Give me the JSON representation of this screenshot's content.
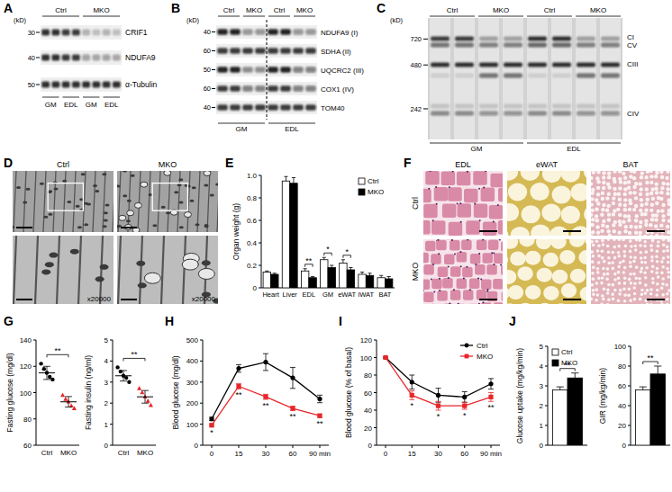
{
  "panel_labels": [
    "A",
    "B",
    "C",
    "D",
    "E",
    "F",
    "G",
    "H",
    "I",
    "J"
  ],
  "blot_a": {
    "unit": "(kD)",
    "header": [
      "Ctrl",
      "MKO"
    ],
    "lanes": [
      "GM",
      "EDL",
      "GM",
      "EDL"
    ],
    "rows": [
      {
        "label": "CRIF1",
        "marker": 30
      },
      {
        "label": "NDUFA9",
        "marker": 40
      },
      {
        "label": "α-Tubulin",
        "marker": 50
      }
    ]
  },
  "blot_b": {
    "unit": "(kD)",
    "header": [
      "Ctrl",
      "MKO",
      "Ctrl",
      "MKO"
    ],
    "groups": [
      "GM",
      "EDL"
    ],
    "rows": [
      {
        "label": "NDUFA9 (I)",
        "marker": 40
      },
      {
        "label": "SDHA (II)",
        "marker": 60
      },
      {
        "label": "UQCRC2 (III)",
        "marker": 50
      },
      {
        "label": "COX1 (IV)",
        "marker": 60
      },
      {
        "label": "TOM40",
        "marker": 40
      }
    ]
  },
  "gel_c": {
    "unit": "(kD)",
    "header": [
      "Ctrl",
      "MKO",
      "Ctrl",
      "MKO"
    ],
    "groups": [
      "GM",
      "EDL"
    ],
    "markers": [
      720,
      480,
      242
    ],
    "bands": [
      "CI",
      "CV",
      "CIII",
      "CIV"
    ]
  },
  "micrograph_d": {
    "columns": [
      "Ctrl",
      "MKO"
    ],
    "magnification": "x20000"
  },
  "histology_f": {
    "rows": [
      "Ctrl",
      "MKO"
    ],
    "columns": [
      "EDL",
      "eWAT",
      "BAT"
    ]
  },
  "chart_data": [
    {
      "type": "bar",
      "y_label": "Organ weight (g)",
      "categories": [
        "Heart",
        "Liver",
        "EDL",
        "GM",
        "eWAT",
        "iWAT",
        "BAT"
      ],
      "series": [
        {
          "name": "Ctrl",
          "color": "#ffffff",
          "values": [
            0.14,
            0.95,
            0.15,
            0.25,
            0.22,
            0.12,
            0.09
          ],
          "errors": [
            0.01,
            0.04,
            0.02,
            0.02,
            0.03,
            0.02,
            0.02
          ]
        },
        {
          "name": "MKO",
          "color": "#000000",
          "values": [
            0.12,
            0.93,
            0.09,
            0.18,
            0.16,
            0.11,
            0.08
          ],
          "errors": [
            0.01,
            0.05,
            0.01,
            0.02,
            0.02,
            0.02,
            0.02
          ]
        }
      ],
      "ylim": [
        0,
        1
      ],
      "yticks": [
        0,
        0.2,
        0.4,
        0.6,
        0.8,
        {
          "value": 1,
          "label": "1.0"
        }
      ],
      "legend": "top-right",
      "significance": [
        null,
        null,
        "**",
        "*",
        "*",
        null,
        null
      ]
    },
    {
      "type": "dot",
      "y_label": "Fasting glucose (mg/dl)",
      "series": [
        {
          "name": "Ctrl",
          "color": "#000000",
          "marker": "circle",
          "values": [
            122,
            118,
            115,
            112,
            110
          ],
          "mean": 115,
          "error": 5
        },
        {
          "name": "MKO",
          "color": "#e8262a",
          "marker": "triangle",
          "values": [
            98,
            95,
            93,
            90,
            88
          ],
          "mean": 93,
          "error": 4
        }
      ],
      "ylim": [
        60,
        140
      ],
      "yticks": [
        60,
        80,
        100,
        120,
        140
      ],
      "significance": "**"
    },
    {
      "type": "dot",
      "y_label": "Fasting insulin (ng/ml)",
      "series": [
        {
          "name": "Ctrl",
          "color": "#000000",
          "marker": "circle",
          "values": [
            3.7,
            3.5,
            3.3,
            3.2,
            3.0
          ],
          "mean": 3.3,
          "error": 0.25
        },
        {
          "name": "MKO",
          "color": "#e8262a",
          "marker": "triangle",
          "values": [
            2.7,
            2.5,
            2.3,
            2.1,
            1.9
          ],
          "mean": 2.3,
          "error": 0.3
        }
      ],
      "ylim": [
        0,
        5
      ],
      "yticks": [
        0,
        1,
        2,
        3,
        4,
        5
      ],
      "significance": "**"
    },
    {
      "type": "line",
      "y_label": "Blood glucose (mg/dl)",
      "categories": [
        "0",
        "15",
        "30",
        "60",
        "90 min"
      ],
      "series": [
        {
          "color": "#000000",
          "marker": "circle",
          "values": [
            125,
            365,
            395,
            320,
            220
          ],
          "errors": [
            8,
            18,
            40,
            50,
            18
          ]
        },
        {
          "color": "#e8262a",
          "marker": "square",
          "values": [
            95,
            280,
            230,
            175,
            140
          ],
          "errors": [
            6,
            12,
            12,
            10,
            8
          ]
        }
      ],
      "ylim": [
        0,
        500
      ],
      "yticks": [
        0,
        100,
        200,
        300,
        400,
        500
      ],
      "significance": [
        "*",
        "**",
        "**",
        "**",
        "**"
      ]
    },
    {
      "type": "line",
      "y_label": "Blood glucose (% of basal)",
      "categories": [
        "0",
        "15",
        "30",
        "60",
        "90 min"
      ],
      "series": [
        {
          "name": "Ctrl",
          "color": "#000000",
          "marker": "circle",
          "values": [
            100,
            72,
            57,
            55,
            70
          ],
          "errors": [
            0,
            8,
            8,
            6,
            6
          ]
        },
        {
          "name": "MKO",
          "color": "#e8262a",
          "marker": "square",
          "values": [
            100,
            57,
            45,
            45,
            55
          ],
          "errors": [
            0,
            5,
            5,
            4,
            5
          ]
        }
      ],
      "ylim": [
        0,
        120
      ],
      "yticks": [
        0,
        20,
        40,
        60,
        80,
        100,
        120
      ],
      "legend": "top-right",
      "significance": [
        null,
        "*",
        "*",
        "*",
        "**"
      ]
    },
    {
      "type": "bar",
      "y_label": "Glucose uptake (mg/kg/min)",
      "series": [
        {
          "name": "Ctrl",
          "color": "#ffffff",
          "values": [
            2.8
          ],
          "errors": [
            0.15
          ]
        },
        {
          "name": "MKO",
          "color": "#000000",
          "values": [
            3.4
          ],
          "errors": [
            0.25
          ]
        }
      ],
      "ylim": [
        0,
        5
      ],
      "yticks": [
        0,
        1,
        2,
        3,
        4,
        5
      ],
      "legend": "top-left",
      "significance": "**"
    },
    {
      "type": "bar",
      "y_label": "GIR (mg/kg/min)",
      "series": [
        {
          "color": "#ffffff",
          "values": [
            56
          ],
          "errors": [
            3
          ]
        },
        {
          "color": "#000000",
          "values": [
            72
          ],
          "errors": [
            8
          ]
        }
      ],
      "ylim": [
        0,
        100
      ],
      "yticks": [
        0,
        20,
        40,
        60,
        80,
        100
      ],
      "significance": "**"
    }
  ]
}
